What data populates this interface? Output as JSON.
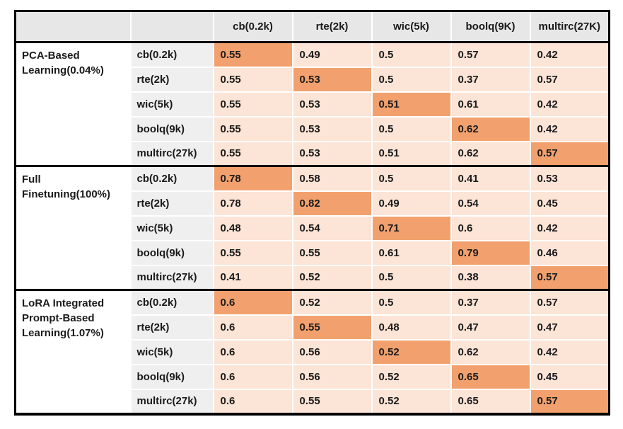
{
  "colors": {
    "header_bg": "#e8e7e7",
    "row_label_bg": "#efefef",
    "group_label_bg": "#ffffff",
    "cell_bg": "#fce4d6",
    "diagonal_highlight_bg": "#f2a16e",
    "border_black": "#000000",
    "text": "#1a1a1a"
  },
  "chart_data": {
    "type": "table",
    "title": "",
    "column_headers": [
      "cb(0.2k)",
      "rte(2k)",
      "wic(5k)",
      "boolq(9K)",
      "multirc(27K)"
    ],
    "groups": [
      {
        "label": "PCA-Based Learning(0.04%)",
        "rows": [
          {
            "label": "cb(0.2k)",
            "values": [
              "0.55",
              "0.49",
              "0.5",
              "0.57",
              "0.42"
            ],
            "highlight_index": 0
          },
          {
            "label": "rte(2k)",
            "values": [
              "0.55",
              "0.53",
              "0.5",
              "0.37",
              "0.57"
            ],
            "highlight_index": 1
          },
          {
            "label": "wic(5k)",
            "values": [
              "0.55",
              "0.53",
              "0.51",
              "0.61",
              "0.42"
            ],
            "highlight_index": 2
          },
          {
            "label": "boolq(9k)",
            "values": [
              "0.55",
              "0.53",
              "0.5",
              "0.62",
              "0.42"
            ],
            "highlight_index": 3
          },
          {
            "label": "multirc(27k)",
            "values": [
              "0.55",
              "0.53",
              "0.51",
              "0.62",
              "0.57"
            ],
            "highlight_index": 4
          }
        ]
      },
      {
        "label": "Full Finetuning(100%)",
        "rows": [
          {
            "label": "cb(0.2k)",
            "values": [
              "0.78",
              "0.58",
              "0.5",
              "0.41",
              "0.53"
            ],
            "highlight_index": 0
          },
          {
            "label": "rte(2k)",
            "values": [
              "0.78",
              "0.82",
              "0.49",
              "0.54",
              "0.45"
            ],
            "highlight_index": 1
          },
          {
            "label": "wic(5k)",
            "values": [
              "0.48",
              "0.54",
              "0.71",
              "0.6",
              "0.42"
            ],
            "highlight_index": 2
          },
          {
            "label": "boolq(9k)",
            "values": [
              "0.55",
              "0.55",
              "0.61",
              "0.79",
              "0.46"
            ],
            "highlight_index": 3
          },
          {
            "label": "multirc(27k)",
            "values": [
              "0.41",
              "0.52",
              "0.5",
              "0.38",
              "0.57"
            ],
            "highlight_index": 4
          }
        ]
      },
      {
        "label": "LoRA Integrated Prompt-Based Learning(1.07%)",
        "rows": [
          {
            "label": "cb(0.2k)",
            "values": [
              "0.6",
              "0.52",
              "0.5",
              "0.37",
              "0.57"
            ],
            "highlight_index": 0
          },
          {
            "label": "rte(2k)",
            "values": [
              "0.6",
              "0.55",
              "0.48",
              "0.47",
              "0.47"
            ],
            "highlight_index": 1
          },
          {
            "label": "wic(5k)",
            "values": [
              "0.6",
              "0.56",
              "0.52",
              "0.62",
              "0.42"
            ],
            "highlight_index": 2
          },
          {
            "label": "boolq(9k)",
            "values": [
              "0.6",
              "0.56",
              "0.52",
              "0.65",
              "0.45"
            ],
            "highlight_index": 3
          },
          {
            "label": "multirc(27k)",
            "values": [
              "0.6",
              "0.55",
              "0.52",
              "0.65",
              "0.57"
            ],
            "highlight_index": 4
          }
        ]
      }
    ]
  }
}
